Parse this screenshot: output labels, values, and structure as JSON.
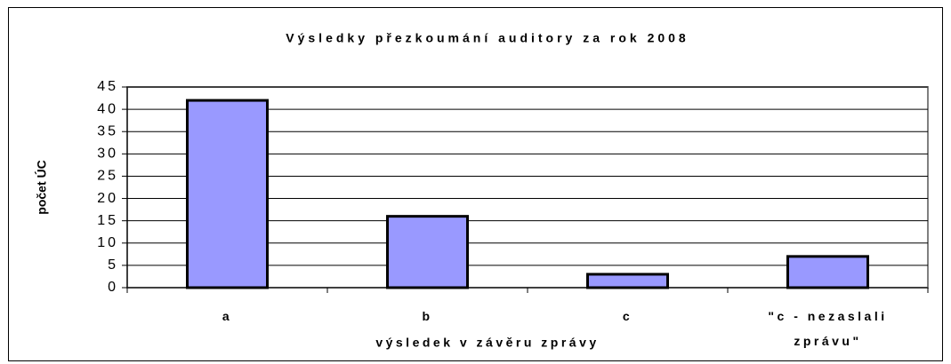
{
  "chart_data": {
    "type": "bar",
    "title": "Výsledky přezkoumání auditory za rok 2008",
    "x_label": "výsledek v závěru zprávy",
    "y_label": "počet ÚC",
    "categories": [
      "a",
      "b",
      "c",
      "\"c - nezaslali zprávu\""
    ],
    "values": [
      42,
      16,
      3,
      7
    ],
    "color": "#9999ff",
    "ylim": [
      0,
      45
    ],
    "yticks": [
      0,
      5,
      10,
      15,
      20,
      25,
      30,
      35,
      40,
      45
    ],
    "grid": true
  }
}
